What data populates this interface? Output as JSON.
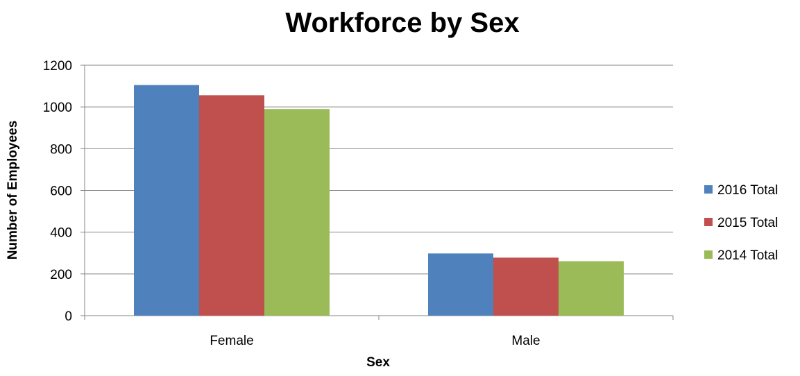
{
  "chart_data": {
    "type": "bar",
    "title": "Workforce by Sex",
    "xlabel": "Sex",
    "ylabel": "Number of Employees",
    "categories": [
      "Female",
      "Male"
    ],
    "series": [
      {
        "name": "2016 Total",
        "values": [
          1105,
          298
        ],
        "color": "#4F81BD"
      },
      {
        "name": "2015 Total",
        "values": [
          1056,
          278
        ],
        "color": "#C0504D"
      },
      {
        "name": "2014 Total",
        "values": [
          990,
          261
        ],
        "color": "#9BBB59"
      }
    ],
    "ylim": [
      0,
      1200
    ],
    "yticks": [
      "0",
      "200",
      "400",
      "600",
      "800",
      "1000",
      "1200"
    ],
    "grid": true,
    "legend_position": "right"
  }
}
